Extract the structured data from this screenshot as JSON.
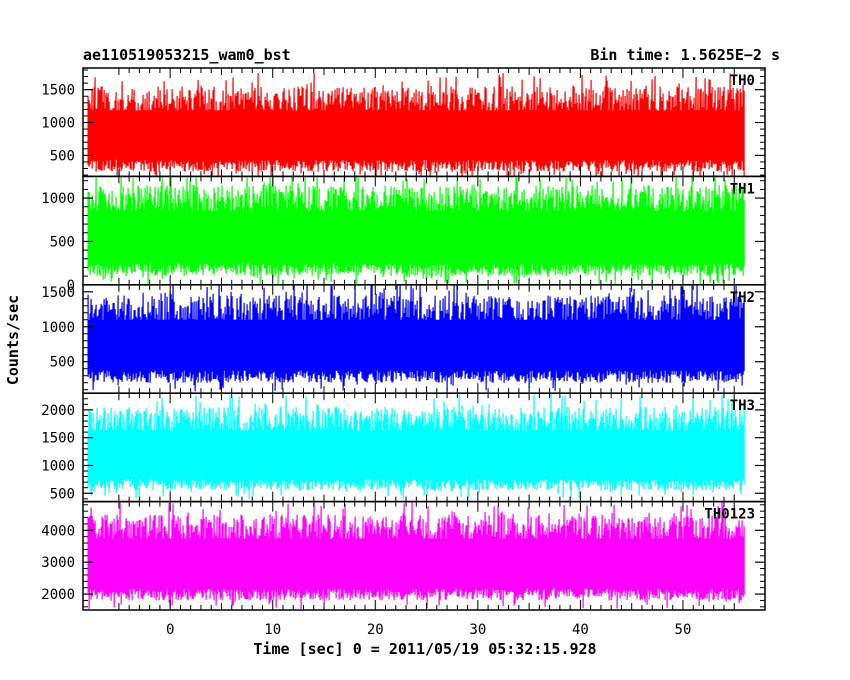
{
  "header": {
    "left_title": "ae110519053215_wam0_bst",
    "right_title": "Bin time: 1.5625E−2 s"
  },
  "chart_data": {
    "type": "line",
    "title": "ae110519053215_wam0_bst",
    "xlabel": "Time [sec] 0 = 2011/05/19 05:32:15.928",
    "ylabel": "Counts/sec",
    "xlim": [
      -8.5,
      58
    ],
    "x_data_range": [
      -8,
      56
    ],
    "xticks": [
      0,
      10,
      20,
      30,
      40,
      50
    ],
    "grid": false,
    "panels": [
      {
        "name": "TH0",
        "color": "#ff0000",
        "ylim": [
          180,
          1830
        ],
        "yticks": [
          500,
          1000,
          1500
        ],
        "mean": 800,
        "typical_low": 250,
        "typical_high": 1550
      },
      {
        "name": "TH1",
        "color": "#00ff00",
        "ylim": [
          0,
          1250
        ],
        "yticks": [
          0,
          500,
          1000
        ],
        "mean": 580,
        "typical_low": 100,
        "typical_high": 1150
      },
      {
        "name": "TH2",
        "color": "#0000ff",
        "ylim": [
          50,
          1600
        ],
        "yticks": [
          500,
          1000,
          1500
        ],
        "mean": 750,
        "typical_low": 200,
        "typical_high": 1450
      },
      {
        "name": "TH3",
        "color": "#00ffff",
        "ylim": [
          350,
          2300
        ],
        "yticks": [
          500,
          1000,
          1500,
          2000
        ],
        "mean": 1150,
        "typical_low": 550,
        "typical_high": 2050
      },
      {
        "name": "TH0123",
        "color": "#ff00ff",
        "ylim": [
          1500,
          4900
        ],
        "yticks": [
          2000,
          3000,
          4000
        ],
        "mean": 3150,
        "typical_low": 1800,
        "typical_high": 4500
      }
    ]
  }
}
